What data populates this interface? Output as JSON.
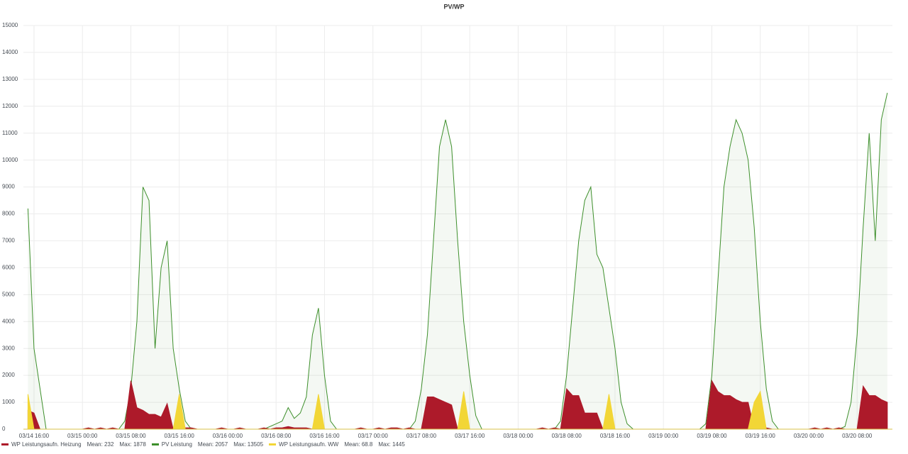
{
  "chart_data": {
    "type": "line",
    "title": "PV/WP",
    "x": [
      "03/14 15:00",
      "03/14 16:00",
      "03/14 17:00",
      "03/14 18:00",
      "03/14 19:00",
      "03/14 20:00",
      "03/14 21:00",
      "03/14 22:00",
      "03/14 23:00",
      "03/15 00:00",
      "03/15 01:00",
      "03/15 02:00",
      "03/15 03:00",
      "03/15 04:00",
      "03/15 05:00",
      "03/15 06:00",
      "03/15 07:00",
      "03/15 08:00",
      "03/15 09:00",
      "03/15 10:00",
      "03/15 11:00",
      "03/15 12:00",
      "03/15 13:00",
      "03/15 14:00",
      "03/15 15:00",
      "03/15 16:00",
      "03/15 17:00",
      "03/15 18:00",
      "03/15 19:00",
      "03/15 20:00",
      "03/15 21:00",
      "03/15 22:00",
      "03/15 23:00",
      "03/16 00:00",
      "03/16 01:00",
      "03/16 02:00",
      "03/16 03:00",
      "03/16 04:00",
      "03/16 05:00",
      "03/16 06:00",
      "03/16 07:00",
      "03/16 08:00",
      "03/16 09:00",
      "03/16 10:00",
      "03/16 11:00",
      "03/16 12:00",
      "03/16 13:00",
      "03/16 14:00",
      "03/16 15:00",
      "03/16 16:00",
      "03/16 17:00",
      "03/16 18:00",
      "03/16 19:00",
      "03/16 20:00",
      "03/16 21:00",
      "03/16 22:00",
      "03/16 23:00",
      "03/17 00:00",
      "03/17 01:00",
      "03/17 02:00",
      "03/17 03:00",
      "03/17 04:00",
      "03/17 05:00",
      "03/17 06:00",
      "03/17 07:00",
      "03/17 08:00",
      "03/17 09:00",
      "03/17 10:00",
      "03/17 11:00",
      "03/17 12:00",
      "03/17 13:00",
      "03/17 14:00",
      "03/17 15:00",
      "03/17 16:00",
      "03/17 17:00",
      "03/17 18:00",
      "03/17 19:00",
      "03/17 20:00",
      "03/17 21:00",
      "03/17 22:00",
      "03/17 23:00",
      "03/18 00:00",
      "03/18 01:00",
      "03/18 02:00",
      "03/18 03:00",
      "03/18 04:00",
      "03/18 05:00",
      "03/18 06:00",
      "03/18 07:00",
      "03/18 08:00",
      "03/18 09:00",
      "03/18 10:00",
      "03/18 11:00",
      "03/18 12:00",
      "03/18 13:00",
      "03/18 14:00",
      "03/18 15:00",
      "03/18 16:00",
      "03/18 17:00",
      "03/18 18:00",
      "03/18 19:00",
      "03/18 20:00",
      "03/18 21:00",
      "03/18 22:00",
      "03/18 23:00",
      "03/19 00:00",
      "03/19 01:00",
      "03/19 02:00",
      "03/19 03:00",
      "03/19 04:00",
      "03/19 05:00",
      "03/19 06:00",
      "03/19 07:00",
      "03/19 08:00",
      "03/19 09:00",
      "03/19 10:00",
      "03/19 11:00",
      "03/19 12:00",
      "03/19 13:00",
      "03/19 14:00",
      "03/19 15:00",
      "03/19 16:00",
      "03/19 17:00",
      "03/19 18:00",
      "03/19 19:00",
      "03/19 20:00",
      "03/19 21:00",
      "03/19 22:00",
      "03/19 23:00",
      "03/20 00:00",
      "03/20 01:00",
      "03/20 02:00",
      "03/20 03:00",
      "03/20 04:00",
      "03/20 05:00",
      "03/20 06:00",
      "03/20 07:00",
      "03/20 08:00",
      "03/20 09:00",
      "03/20 10:00",
      "03/20 11:00",
      "03/20 12:00",
      "03/20 13:00"
    ],
    "series": [
      {
        "name": "WP Leistungsaufn. Heizung",
        "color": "#ad1a2a",
        "fill": "area",
        "legend_stats": [
          {
            "label": "Mean:",
            "value": 232
          },
          {
            "label": "Max:",
            "value": 1878
          }
        ],
        "values": [
          700,
          600,
          0,
          0,
          0,
          0,
          0,
          0,
          0,
          0,
          50,
          0,
          50,
          0,
          50,
          0,
          0,
          1800,
          800,
          700,
          550,
          550,
          450,
          950,
          0,
          0,
          50,
          50,
          0,
          0,
          0,
          0,
          50,
          0,
          0,
          50,
          0,
          0,
          0,
          50,
          0,
          50,
          50,
          100,
          50,
          50,
          50,
          0,
          0,
          0,
          0,
          0,
          0,
          0,
          0,
          50,
          0,
          0,
          50,
          0,
          50,
          50,
          0,
          50,
          0,
          0,
          1200,
          1200,
          1100,
          1000,
          900,
          0,
          0,
          0,
          0,
          0,
          0,
          0,
          0,
          0,
          0,
          0,
          0,
          0,
          0,
          50,
          0,
          50,
          0,
          1500,
          1250,
          1250,
          600,
          600,
          600,
          0,
          0,
          0,
          0,
          0,
          0,
          0,
          0,
          0,
          0,
          0,
          0,
          0,
          0,
          0,
          0,
          0,
          0,
          1800,
          1400,
          1250,
          1250,
          1100,
          1000,
          1000,
          0,
          0,
          50,
          0,
          0,
          0,
          0,
          0,
          0,
          0,
          50,
          0,
          50,
          0,
          50,
          0,
          0,
          0,
          1600,
          1250,
          1250,
          1100,
          1000
        ]
      },
      {
        "name": "PV Leistung",
        "color": "#3d8f2b",
        "fill": "line",
        "legend_stats": [
          {
            "label": "Mean:",
            "value": 2057
          },
          {
            "label": "Max:",
            "value": 13505
          }
        ],
        "values": [
          8200,
          3000,
          1500,
          0,
          0,
          0,
          0,
          0,
          0,
          0,
          0,
          0,
          0,
          0,
          0,
          0,
          300,
          1500,
          4000,
          9000,
          8500,
          3000,
          6000,
          7000,
          3000,
          1500,
          300,
          0,
          0,
          0,
          0,
          0,
          0,
          0,
          0,
          0,
          0,
          0,
          0,
          0,
          100,
          200,
          300,
          800,
          400,
          600,
          1200,
          3500,
          4500,
          2000,
          300,
          0,
          0,
          0,
          0,
          0,
          0,
          0,
          0,
          0,
          0,
          0,
          0,
          0,
          300,
          1500,
          3500,
          7000,
          10500,
          11500,
          10500,
          7000,
          4000,
          2000,
          500,
          0,
          0,
          0,
          0,
          0,
          0,
          0,
          0,
          0,
          0,
          0,
          0,
          0,
          300,
          2000,
          4500,
          7000,
          8500,
          9000,
          6500,
          6000,
          4500,
          3000,
          1000,
          200,
          0,
          0,
          0,
          0,
          0,
          0,
          0,
          0,
          0,
          0,
          0,
          0,
          200,
          2000,
          5500,
          9000,
          10500,
          11500,
          11000,
          10000,
          7500,
          4000,
          1500,
          300,
          0,
          0,
          0,
          0,
          0,
          0,
          0,
          0,
          0,
          0,
          0,
          100,
          1000,
          3500,
          7500,
          11000,
          7000,
          11500,
          12500
        ]
      },
      {
        "name": "WP Leistungsaufn. WW",
        "color": "#f2d636",
        "fill": "area",
        "legend_stats": [
          {
            "label": "Mean:",
            "value": 68.8
          },
          {
            "label": "Max:",
            "value": 1445
          }
        ],
        "values": [
          1300,
          0,
          0,
          0,
          0,
          0,
          0,
          0,
          0,
          0,
          0,
          0,
          0,
          0,
          0,
          0,
          0,
          0,
          0,
          0,
          0,
          0,
          0,
          0,
          0,
          1300,
          0,
          0,
          0,
          0,
          0,
          0,
          0,
          0,
          0,
          0,
          0,
          0,
          0,
          0,
          0,
          0,
          0,
          0,
          0,
          0,
          0,
          0,
          1300,
          0,
          0,
          0,
          0,
          0,
          0,
          0,
          0,
          0,
          0,
          0,
          0,
          0,
          0,
          0,
          0,
          0,
          0,
          0,
          0,
          0,
          0,
          0,
          1400,
          0,
          0,
          0,
          0,
          0,
          0,
          0,
          0,
          0,
          0,
          0,
          0,
          0,
          0,
          0,
          0,
          0,
          0,
          0,
          0,
          0,
          0,
          0,
          1300,
          0,
          0,
          0,
          0,
          0,
          0,
          0,
          0,
          0,
          0,
          0,
          0,
          0,
          0,
          0,
          0,
          0,
          0,
          0,
          0,
          0,
          0,
          0,
          1000,
          1400,
          0,
          0,
          0,
          0,
          0,
          0,
          0,
          0,
          0,
          0,
          0,
          0,
          0,
          0,
          0,
          0,
          0,
          0,
          0,
          0,
          0
        ]
      }
    ],
    "xlim": [
      "03/14 14:15",
      "03/20 13:50"
    ],
    "xticks": [
      "03/14 16:00",
      "03/15 00:00",
      "03/15 08:00",
      "03/15 16:00",
      "03/16 00:00",
      "03/16 08:00",
      "03/16 16:00",
      "03/17 00:00",
      "03/17 08:00",
      "03/17 16:00",
      "03/18 00:00",
      "03/18 08:00",
      "03/18 16:00",
      "03/19 00:00",
      "03/19 08:00",
      "03/19 16:00",
      "03/20 00:00",
      "03/20 08:00"
    ],
    "ylim": [
      0,
      15000
    ],
    "yticks": [
      0,
      1000,
      2000,
      3000,
      4000,
      5000,
      6000,
      7000,
      8000,
      9000,
      10000,
      11000,
      12000,
      13000,
      14000,
      15000
    ],
    "grid": true
  }
}
